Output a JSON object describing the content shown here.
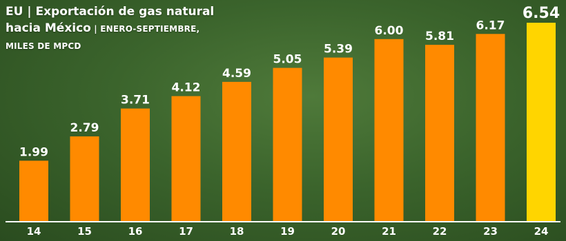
{
  "chart_data": {
    "type": "bar",
    "title": "EU | Exportación de gas natural hacia México",
    "title_line1": "EU | Exportación de gas natural",
    "title_line2_main": "hacia México",
    "title_line2_sub": " | ENERO-SEPTIEMBRE,",
    "title_line3_sub": "MILES DE MPCD",
    "categories": [
      "14",
      "15",
      "16",
      "17",
      "18",
      "19",
      "20",
      "21",
      "22",
      "23",
      "24"
    ],
    "values": [
      1.99,
      2.79,
      3.71,
      4.12,
      4.59,
      5.05,
      5.39,
      6.0,
      5.81,
      6.17,
      6.54
    ],
    "value_labels": [
      "1.99",
      "2.79",
      "3.71",
      "4.12",
      "4.59",
      "5.05",
      "5.39",
      "6.00",
      "5.81",
      "6.17",
      "6.54"
    ],
    "highlight_index": 10,
    "ylim": [
      0,
      6.54
    ],
    "xlabel": "",
    "ylabel": "",
    "grid": false,
    "colors": {
      "background": "#3b642c",
      "bar": "#ff8a00",
      "bar_highlight": "#ffd500",
      "axis": "#ffffff",
      "text": "#ffffff"
    }
  }
}
